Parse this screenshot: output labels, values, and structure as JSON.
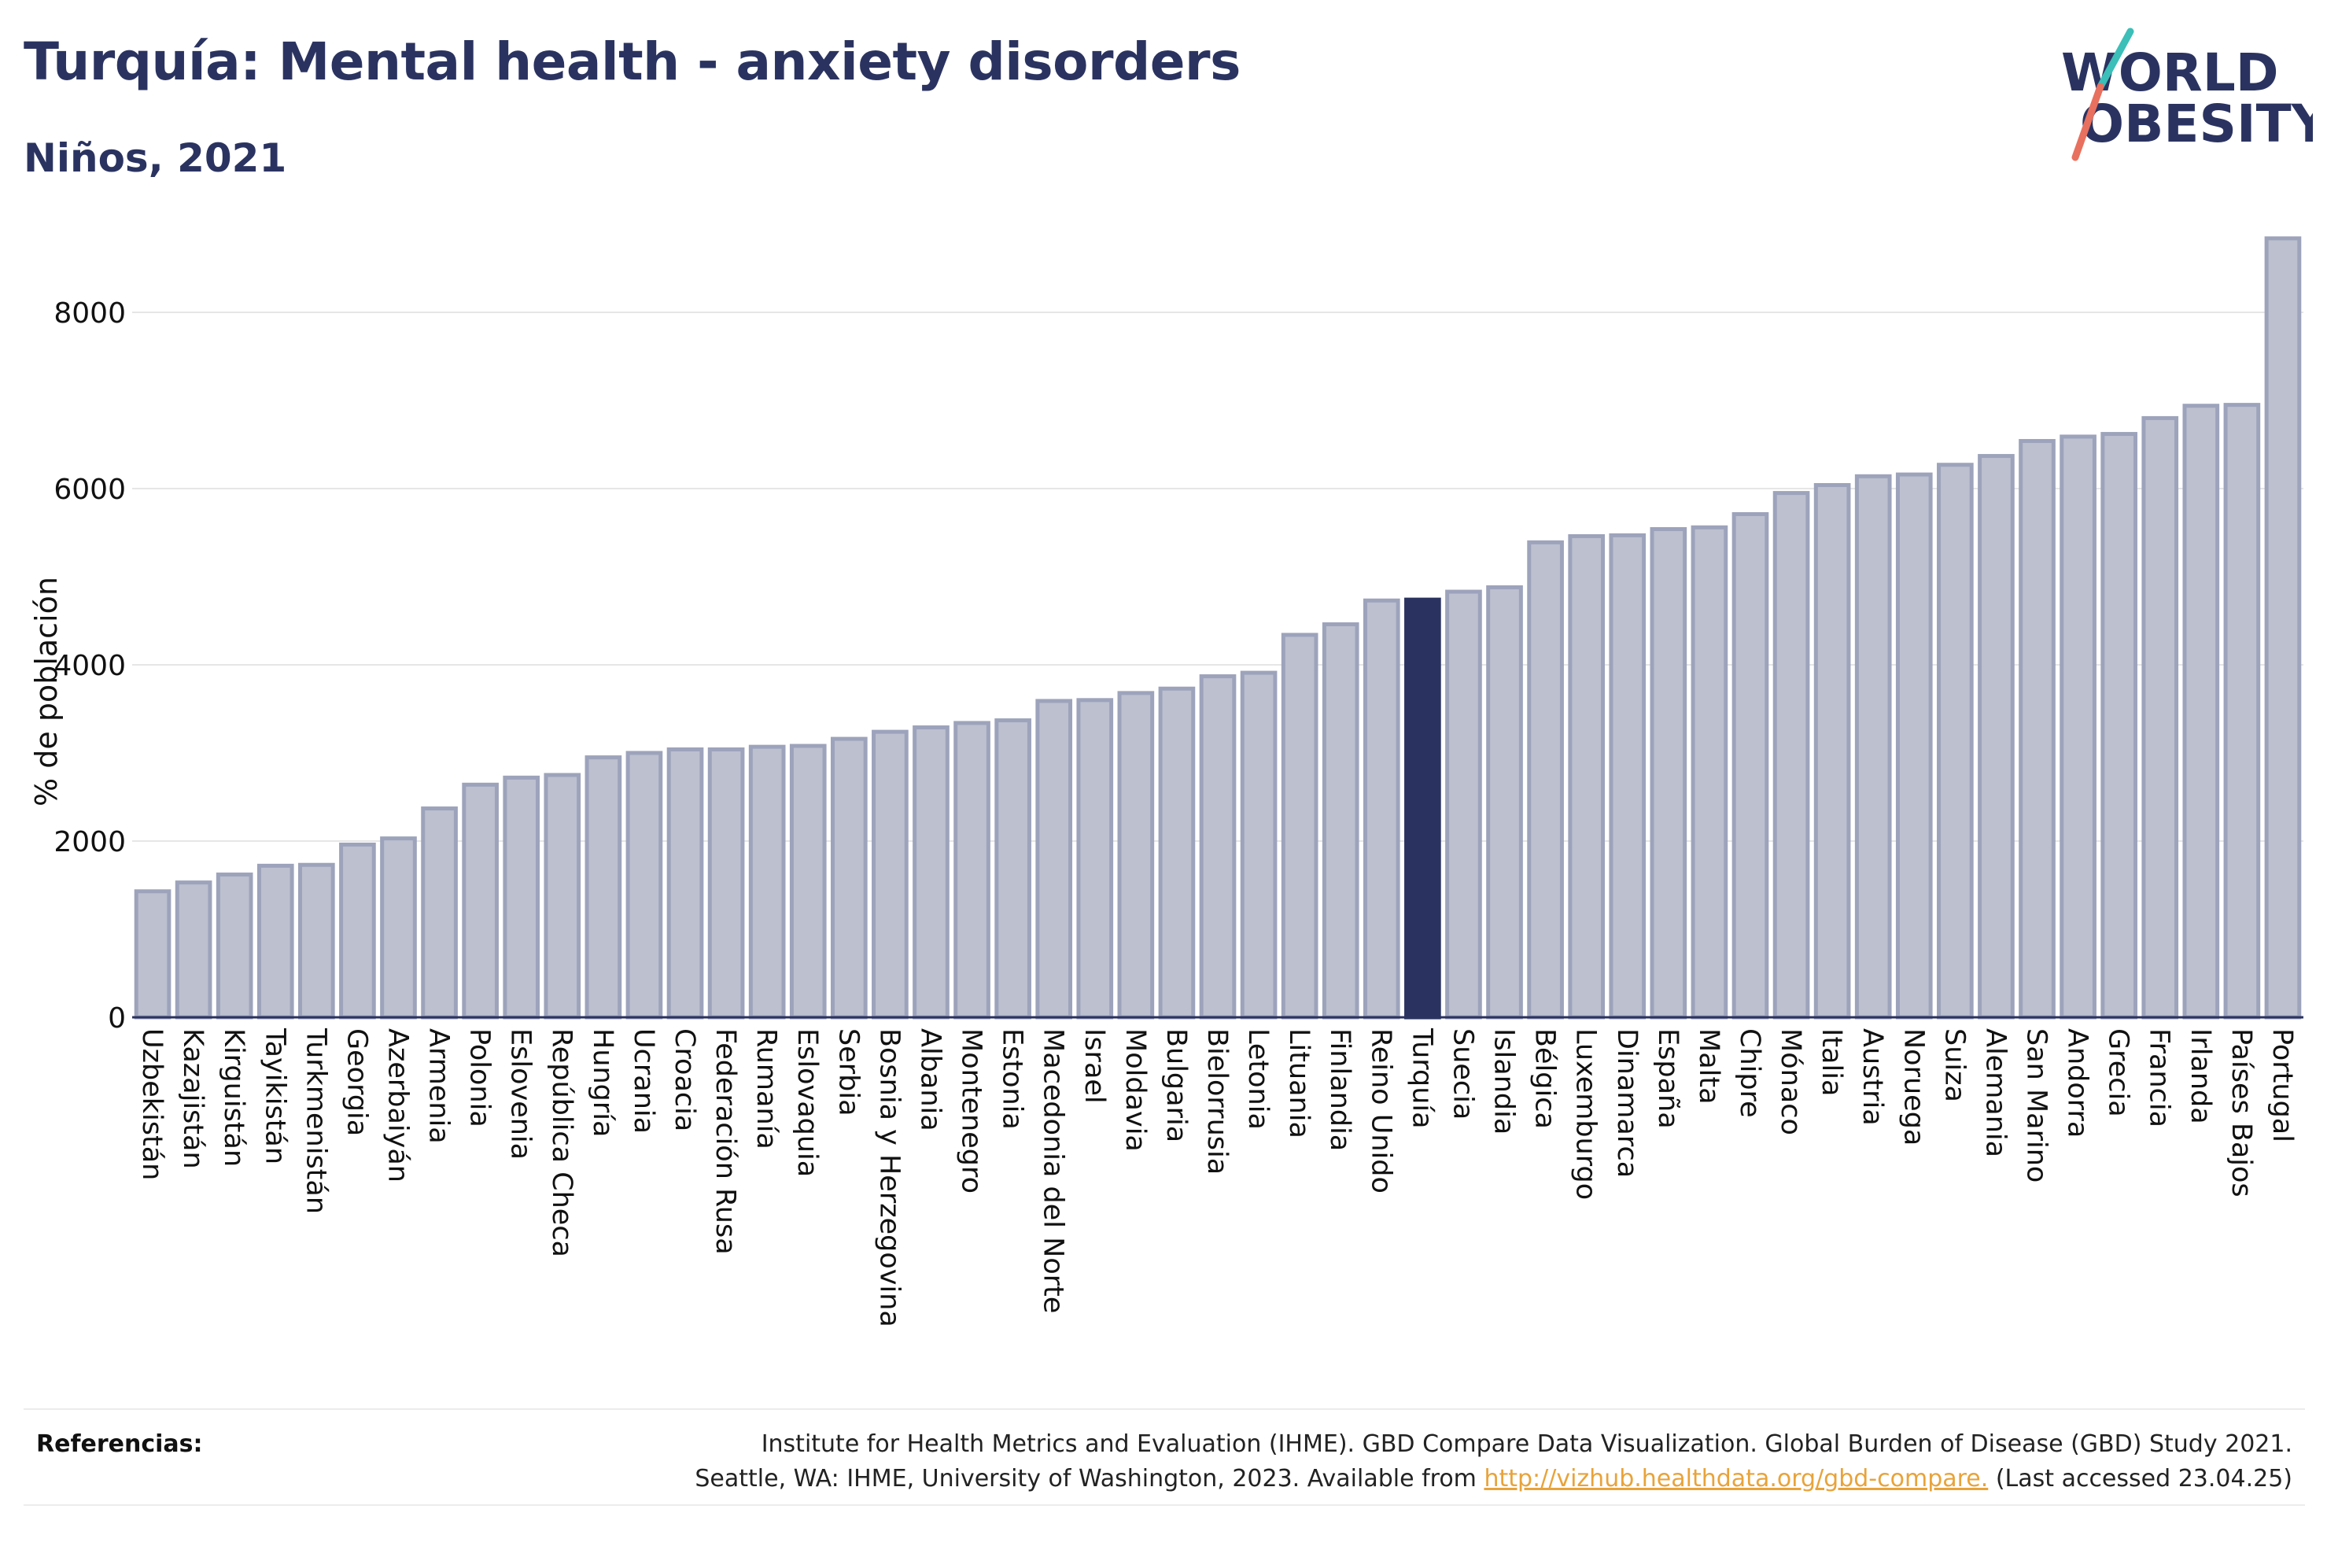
{
  "header": {
    "title": "Turquía: Mental health - anxiety disorders",
    "subtitle": "Niños, 2021"
  },
  "logo": {
    "line1": "WORLD",
    "line2": "OBESITY"
  },
  "colors": {
    "highlight": "#2a3360",
    "bar_fill": "#bcc0cf",
    "bar_stroke": "#9da3bb",
    "axis": "#2a3360",
    "grid": "#e6e6e6",
    "logo_teal": "#3bbfb8",
    "logo_coral": "#e8705e",
    "link": "#e8a33a"
  },
  "chart_data": {
    "type": "bar",
    "ylabel": "% de población",
    "ylim": [
      0,
      9000
    ],
    "yticks": [
      0,
      2000,
      4000,
      6000,
      8000
    ],
    "grid": true,
    "highlight": "Turquía",
    "categories": [
      "Uzbekistán",
      "Kazajistán",
      "Kirguistán",
      "Tayikistán",
      "Turkmenistán",
      "Georgia",
      "Azerbaiyán",
      "Armenia",
      "Polonia",
      "Eslovenia",
      "República Checa",
      "Hungría",
      "Ucrania",
      "Croacia",
      "Federación Rusa",
      "Rumanía",
      "Eslovaquia",
      "Serbia",
      "Bosnia y Herzegovina",
      "Albania",
      "Montenegro",
      "Estonia",
      "Macedonia del Norte",
      "Israel",
      "Moldavia",
      "Bulgaria",
      "Bielorrusia",
      "Letonia",
      "Lituania",
      "Finlandia",
      "Reino Unido",
      "Turquía",
      "Suecia",
      "Islandia",
      "Bélgica",
      "Luxemburgo",
      "Dinamarca",
      "España",
      "Malta",
      "Chipre",
      "Mónaco",
      "Italia",
      "Austria",
      "Noruega",
      "Suiza",
      "Alemania",
      "San Marino",
      "Andorra",
      "Grecia",
      "Francia",
      "Irlanda",
      "Países Bajos",
      "Portugal"
    ],
    "values": [
      1430,
      1530,
      1620,
      1720,
      1730,
      1960,
      2030,
      2370,
      2640,
      2720,
      2750,
      2950,
      3000,
      3040,
      3040,
      3070,
      3080,
      3160,
      3240,
      3290,
      3340,
      3370,
      3590,
      3600,
      3680,
      3730,
      3870,
      3910,
      4340,
      4460,
      4730,
      4740,
      4830,
      4880,
      5390,
      5460,
      5470,
      5540,
      5560,
      5710,
      5950,
      6040,
      6140,
      6160,
      6270,
      6370,
      6540,
      6590,
      6620,
      6800,
      6940,
      6950,
      8840
    ]
  },
  "references": {
    "label": "Referencias:",
    "line1": "Institute for Health Metrics and Evaluation (IHME). GBD Compare Data Visualization. Global Burden of Disease (GBD) Study 2021.",
    "line2_prefix": "Seattle, WA: IHME, University of Washington, 2023. Available from ",
    "link": "http://vizhub.healthdata.org/gbd-compare.",
    "line2_suffix": " (Last accessed 23.04.25)"
  }
}
